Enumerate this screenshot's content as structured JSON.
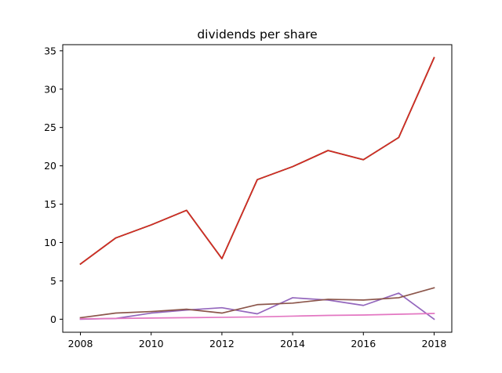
{
  "chart_data": {
    "type": "line",
    "title": "dividends per share",
    "xlabel": "",
    "ylabel": "",
    "xlim": [
      2007.5,
      2018.5
    ],
    "ylim": [
      -1.7,
      35.8
    ],
    "x_ticks": [
      2008,
      2010,
      2012,
      2014,
      2016,
      2018
    ],
    "y_ticks": [
      0,
      5,
      10,
      15,
      20,
      25,
      30,
      35
    ],
    "grid": false,
    "legend": "none",
    "x": [
      2008,
      2009,
      2010,
      2011,
      2012,
      2013,
      2014,
      2015,
      2016,
      2017,
      2018
    ],
    "series": [
      {
        "color": "#1f77b4",
        "values": [
          7.2,
          10.6,
          12.3,
          14.2,
          7.9,
          18.2,
          19.9,
          22.0,
          20.8,
          23.7,
          34.1
        ]
      },
      {
        "color": "#ff7f0e",
        "values": [
          7.2,
          10.6,
          12.3,
          14.2,
          7.9,
          18.2,
          19.9,
          22.0,
          20.8,
          23.7,
          34.1
        ]
      },
      {
        "color": "#2ca02c",
        "values": [
          7.2,
          10.6,
          12.3,
          14.2,
          7.9,
          18.2,
          19.9,
          22.0,
          20.8,
          23.7,
          34.1
        ]
      },
      {
        "color": "#d62728",
        "values": [
          7.2,
          10.6,
          12.3,
          14.2,
          7.9,
          18.2,
          19.9,
          22.0,
          20.8,
          23.7,
          34.1
        ]
      },
      {
        "color": "#9467bd",
        "values": [
          0.0,
          0.1,
          0.8,
          1.2,
          1.5,
          0.7,
          2.8,
          2.5,
          1.8,
          3.4,
          0.0
        ]
      },
      {
        "color": "#8c564b",
        "values": [
          0.2,
          0.8,
          1.0,
          1.3,
          0.8,
          1.9,
          2.1,
          2.6,
          2.5,
          2.8,
          4.1
        ]
      },
      {
        "color": "#e377c2",
        "values": [
          0.05,
          0.1,
          0.15,
          0.2,
          0.25,
          0.3,
          0.4,
          0.5,
          0.55,
          0.65,
          0.75
        ]
      }
    ]
  }
}
